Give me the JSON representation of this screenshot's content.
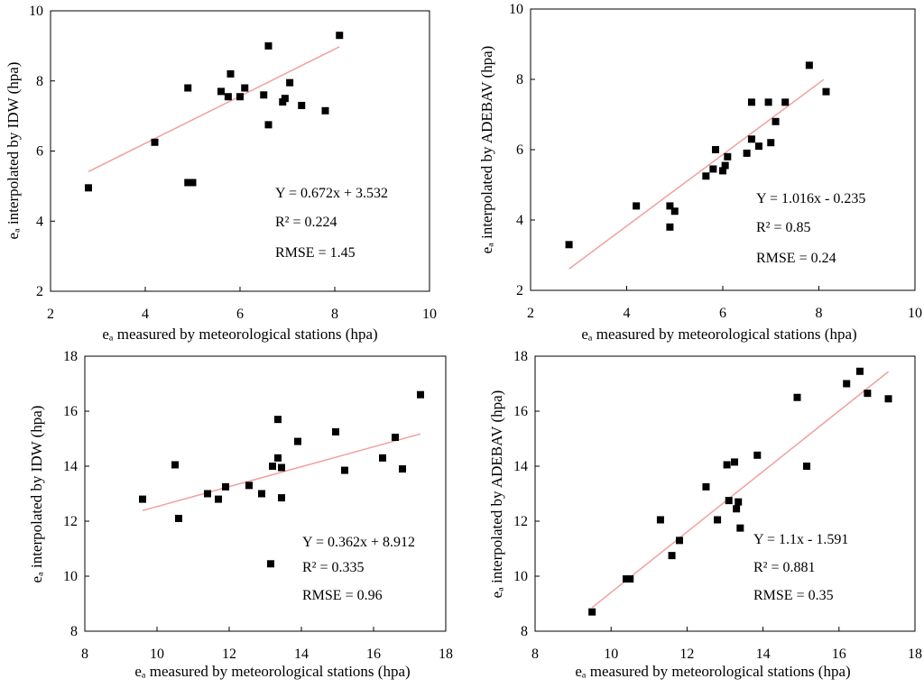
{
  "chart_data": [
    {
      "type": "scatter",
      "xlabel": "eₐ measured by meteorological stations (hpa)",
      "ylabel": "eₐ interpolated by IDW (hpa)",
      "xlim": [
        2,
        10
      ],
      "ylim": [
        2,
        10
      ],
      "xticks": [
        2,
        4,
        6,
        8,
        10
      ],
      "yticks": [
        2,
        4,
        6,
        8,
        10
      ],
      "tick_labels": {
        "x": [
          "2",
          "4",
          "6",
          "8",
          "10"
        ],
        "y": [
          "2",
          "4",
          "6",
          "8",
          "10"
        ]
      },
      "grid": false,
      "points": [
        [
          2.8,
          4.95
        ],
        [
          4.2,
          6.25
        ],
        [
          4.9,
          7.8
        ],
        [
          4.9,
          5.1
        ],
        [
          5.0,
          5.1
        ],
        [
          5.6,
          7.7
        ],
        [
          5.75,
          7.55
        ],
        [
          5.8,
          8.2
        ],
        [
          6.0,
          7.55
        ],
        [
          6.1,
          7.8
        ],
        [
          6.5,
          7.6
        ],
        [
          6.6,
          6.75
        ],
        [
          6.6,
          9.0
        ],
        [
          6.9,
          7.4
        ],
        [
          6.95,
          7.5
        ],
        [
          7.05,
          7.95
        ],
        [
          7.3,
          7.3
        ],
        [
          7.8,
          7.15
        ],
        [
          8.1,
          9.3
        ]
      ],
      "fit": {
        "slope": 0.672,
        "intercept": 3.532,
        "x_range": [
          2.8,
          8.1
        ],
        "color": "#F0A0A0"
      },
      "marker_color": "#000000",
      "annotations": [
        "Y = 0.672x + 3.532",
        "R² = 0.224",
        "RMSE = 1.45"
      ]
    },
    {
      "type": "scatter",
      "xlabel": "eₐ measured by meteorological stations (hpa)",
      "ylabel": "eₐ interpolated by ADEBAV (hpa)",
      "xlim": [
        2,
        10
      ],
      "ylim": [
        2,
        10
      ],
      "xticks": [
        2,
        4,
        6,
        8,
        10
      ],
      "yticks": [
        2,
        4,
        6,
        8,
        10
      ],
      "tick_labels": {
        "x": [
          "2",
          "4",
          "6",
          "8",
          "10"
        ],
        "y": [
          "2",
          "4",
          "6",
          "8",
          "10"
        ]
      },
      "grid": false,
      "points": [
        [
          2.8,
          3.3
        ],
        [
          4.2,
          4.4
        ],
        [
          4.9,
          4.4
        ],
        [
          4.9,
          3.8
        ],
        [
          5.0,
          4.25
        ],
        [
          5.65,
          5.25
        ],
        [
          5.8,
          5.45
        ],
        [
          5.85,
          6.0
        ],
        [
          6.0,
          5.4
        ],
        [
          6.05,
          5.55
        ],
        [
          6.1,
          5.8
        ],
        [
          6.5,
          5.9
        ],
        [
          6.6,
          6.3
        ],
        [
          6.6,
          7.35
        ],
        [
          6.75,
          6.1
        ],
        [
          6.95,
          7.35
        ],
        [
          7.0,
          6.2
        ],
        [
          7.1,
          6.8
        ],
        [
          7.3,
          7.35
        ],
        [
          7.8,
          8.4
        ],
        [
          8.15,
          7.65
        ]
      ],
      "fit": {
        "slope": 1.016,
        "intercept": -0.235,
        "x_range": [
          2.8,
          8.1
        ],
        "color": "#F0A0A0"
      },
      "marker_color": "#000000",
      "annotations": [
        "Y = 1.016x - 0.235",
        "R² = 0.85",
        "RMSE = 0.24"
      ]
    },
    {
      "type": "scatter",
      "xlabel": "eₐ measured by meteorological stations (hpa)",
      "ylabel": "eₐ interpolated by IDW (hpa)",
      "xlim": [
        8,
        18
      ],
      "ylim": [
        8,
        18
      ],
      "xticks": [
        8,
        10,
        12,
        14,
        16,
        18
      ],
      "yticks": [
        8,
        10,
        12,
        14,
        16,
        18
      ],
      "tick_labels": {
        "x": [
          "8",
          "10",
          "12",
          "14",
          "16",
          "18"
        ],
        "y": [
          "8",
          "10",
          "12",
          "14",
          "16",
          "18"
        ]
      },
      "grid": false,
      "points": [
        [
          9.6,
          12.8
        ],
        [
          10.5,
          14.05
        ],
        [
          10.6,
          12.1
        ],
        [
          11.4,
          13.0
        ],
        [
          11.7,
          12.8
        ],
        [
          11.9,
          13.25
        ],
        [
          12.55,
          13.3
        ],
        [
          12.9,
          13.0
        ],
        [
          13.15,
          10.45
        ],
        [
          13.2,
          14.0
        ],
        [
          13.35,
          15.7
        ],
        [
          13.35,
          14.3
        ],
        [
          13.45,
          13.95
        ],
        [
          13.45,
          12.85
        ],
        [
          13.9,
          14.9
        ],
        [
          14.95,
          15.25
        ],
        [
          15.2,
          13.85
        ],
        [
          16.25,
          14.3
        ],
        [
          16.6,
          15.05
        ],
        [
          16.8,
          13.9
        ],
        [
          17.3,
          16.6
        ]
      ],
      "fit": {
        "slope": 0.362,
        "intercept": 8.912,
        "x_range": [
          9.6,
          17.3
        ],
        "color": "#F0A0A0"
      },
      "marker_color": "#000000",
      "annotations": [
        "Y = 0.362x + 8.912",
        "R² = 0.335",
        "RMSE = 0.96"
      ]
    },
    {
      "type": "scatter",
      "xlabel": "eₐ measured by meteorological stations (hpa)",
      "ylabel": "eₐ interpolated by ADEBAV (hpa)",
      "xlim": [
        8,
        18
      ],
      "ylim": [
        8,
        18
      ],
      "xticks": [
        8,
        10,
        12,
        14,
        16,
        18
      ],
      "yticks": [
        8,
        10,
        12,
        14,
        16,
        18
      ],
      "tick_labels": {
        "x": [
          "8",
          "10",
          "12",
          "14",
          "16",
          "18"
        ],
        "y": [
          "8",
          "10",
          "12",
          "14",
          "16",
          "18"
        ]
      },
      "grid": false,
      "points": [
        [
          9.5,
          8.7
        ],
        [
          10.4,
          9.9
        ],
        [
          10.5,
          9.9
        ],
        [
          11.3,
          12.05
        ],
        [
          11.6,
          10.75
        ],
        [
          11.8,
          11.3
        ],
        [
          12.5,
          13.25
        ],
        [
          12.8,
          12.05
        ],
        [
          13.05,
          14.05
        ],
        [
          13.1,
          12.75
        ],
        [
          13.25,
          14.15
        ],
        [
          13.3,
          12.45
        ],
        [
          13.35,
          12.7
        ],
        [
          13.4,
          11.75
        ],
        [
          13.85,
          14.4
        ],
        [
          14.9,
          16.5
        ],
        [
          15.15,
          14.0
        ],
        [
          16.2,
          17.0
        ],
        [
          16.55,
          17.45
        ],
        [
          16.75,
          16.65
        ],
        [
          17.3,
          16.45
        ]
      ],
      "fit": {
        "slope": 1.1,
        "intercept": -1.591,
        "x_range": [
          9.5,
          17.3
        ],
        "color": "#F0A0A0"
      },
      "marker_color": "#000000",
      "annotations": [
        "Y = 1.1x - 1.591",
        "R² = 0.881",
        "RMSE = 0.35"
      ]
    }
  ]
}
